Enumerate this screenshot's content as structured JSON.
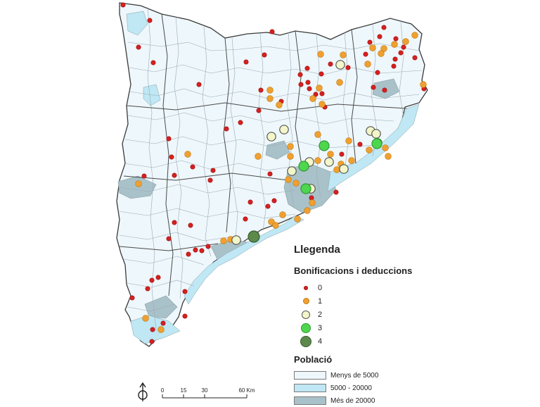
{
  "legend": {
    "title": "Llegenda",
    "bonus_title": "Bonificacions i deduccions",
    "bonus_classes": [
      {
        "label": "0",
        "color": "#d62020"
      },
      {
        "label": "1",
        "color": "#f0a030"
      },
      {
        "label": "2",
        "color": "#f2f6c8"
      },
      {
        "label": "3",
        "color": "#4fd64f"
      },
      {
        "label": "4",
        "color": "#5b8a4a"
      }
    ],
    "population_title": "Població",
    "population_classes": [
      {
        "label": "Menys de 5000",
        "color": "#eef7fb"
      },
      {
        "label": "5000 - 20000",
        "color": "#bfe7f4"
      },
      {
        "label": "Més de 20000",
        "color": "#a9c2c9"
      }
    ]
  },
  "scale": {
    "ticks": [
      "0",
      "15",
      "30",
      "60 Km"
    ]
  },
  "colors": {
    "outline": "#3a3a3a",
    "municipal_lines": "#9aa9b6",
    "sea": "#ffffff"
  }
}
